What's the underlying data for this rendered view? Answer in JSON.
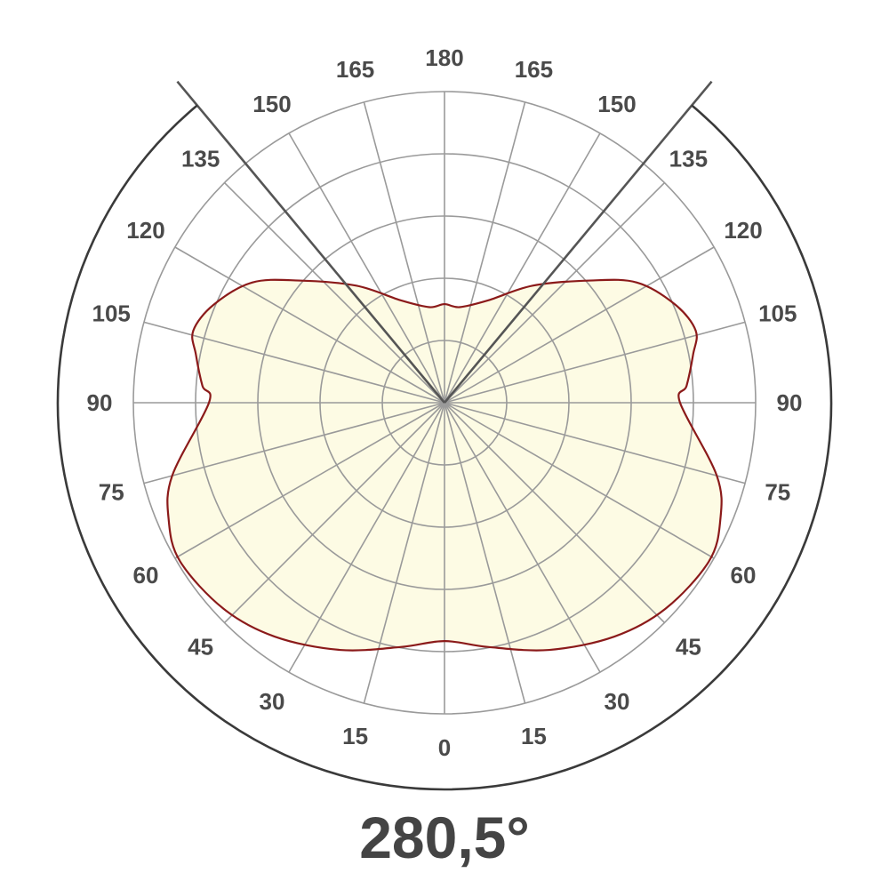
{
  "chart_data": {
    "type": "polar",
    "title": "280,5°",
    "angle_unit": "degrees",
    "angle_range": [
      0,
      180
    ],
    "angle_ticks": [
      0,
      15,
      30,
      45,
      60,
      75,
      90,
      105,
      120,
      135,
      150,
      165,
      180
    ],
    "angle_tick_labels": [
      "0",
      "15",
      "30",
      "45",
      "60",
      "75",
      "90",
      "105",
      "120",
      "135",
      "150",
      "165",
      "180"
    ],
    "radial_rings": 5,
    "radial_labels_shown": false,
    "beam_angle_deg": 280.5,
    "symmetric": true,
    "series": [
      {
        "angles": [
          0,
          10,
          23,
          36,
          47,
          59,
          67,
          75,
          90,
          94,
          101,
          106,
          113,
          122,
          130,
          143,
          157,
          171,
          180
        ],
        "relative_intensity": [
          0.766,
          0.797,
          0.863,
          0.929,
          0.971,
          0.991,
          0.963,
          0.906,
          0.757,
          0.78,
          0.814,
          0.84,
          0.806,
          0.729,
          0.611,
          0.471,
          0.357,
          0.311,
          0.317
        ]
      }
    ],
    "grid": true,
    "colors": {
      "curve": "#8b1a1a",
      "fill": "#fdfbe4",
      "grid": "#9a9a9a",
      "beam_lines": "#555555",
      "arc": "#3a3a3a",
      "text": "#4a4a4a"
    }
  }
}
